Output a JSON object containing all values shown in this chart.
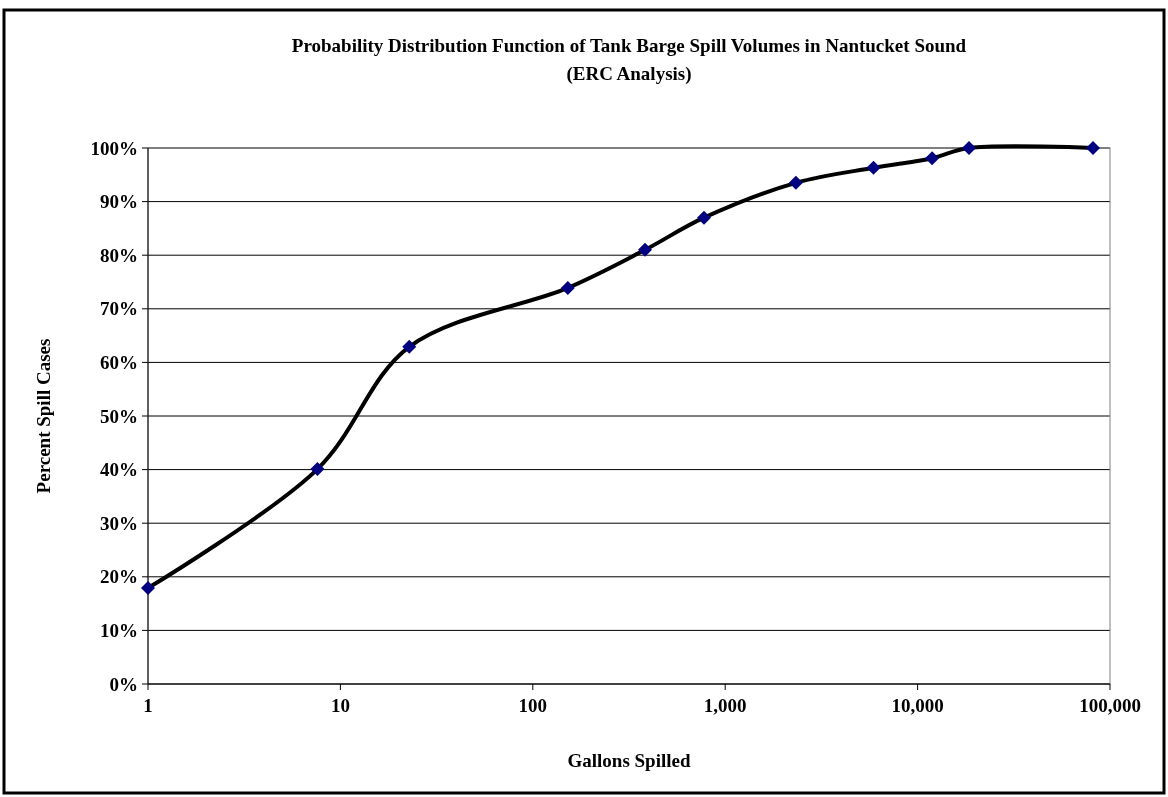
{
  "chart_data": {
    "type": "line",
    "title": "Probability Distribution Function of Tank Barge Spill Volumes in Nantucket Sound",
    "subtitle": "(ERC Analysis)",
    "xlabel": "Gallons Spilled",
    "ylabel": "Percent Spill Cases",
    "log": "x",
    "x": [
      1,
      7.6,
      22.8,
      152,
      383,
      776,
      2330,
      5900,
      11900,
      18500,
      81600
    ],
    "series": [
      {
        "color": "#000080",
        "values": [
          17.9,
          40.1,
          62.9,
          73.9,
          81,
          87,
          93.5,
          96.3,
          98.1,
          100,
          100
        ]
      }
    ],
    "xlim": [
      1,
      100000
    ],
    "xticks": [
      1,
      10,
      {
        "value": 100,
        "label": "100"
      },
      {
        "value": 1000,
        "label": "1,000"
      },
      {
        "value": 10000,
        "label": "10,000"
      },
      {
        "value": 100000,
        "label": "100,000"
      }
    ],
    "ylim": [
      0,
      100
    ],
    "yticks": [
      {
        "value": 0,
        "label": "0%"
      },
      {
        "value": 10,
        "label": "10%"
      },
      {
        "value": 20,
        "label": "20%"
      },
      {
        "value": 30,
        "label": "30%"
      },
      {
        "value": 40,
        "label": "40%"
      },
      {
        "value": 50,
        "label": "50%"
      },
      {
        "value": 60,
        "label": "60%"
      },
      {
        "value": 70,
        "label": "70%"
      },
      {
        "value": 80,
        "label": "80%"
      },
      {
        "value": 90,
        "label": "90%"
      },
      {
        "value": 100,
        "label": "100%"
      }
    ],
    "grid": "y",
    "marker": "diamond",
    "line_style": "solid"
  }
}
